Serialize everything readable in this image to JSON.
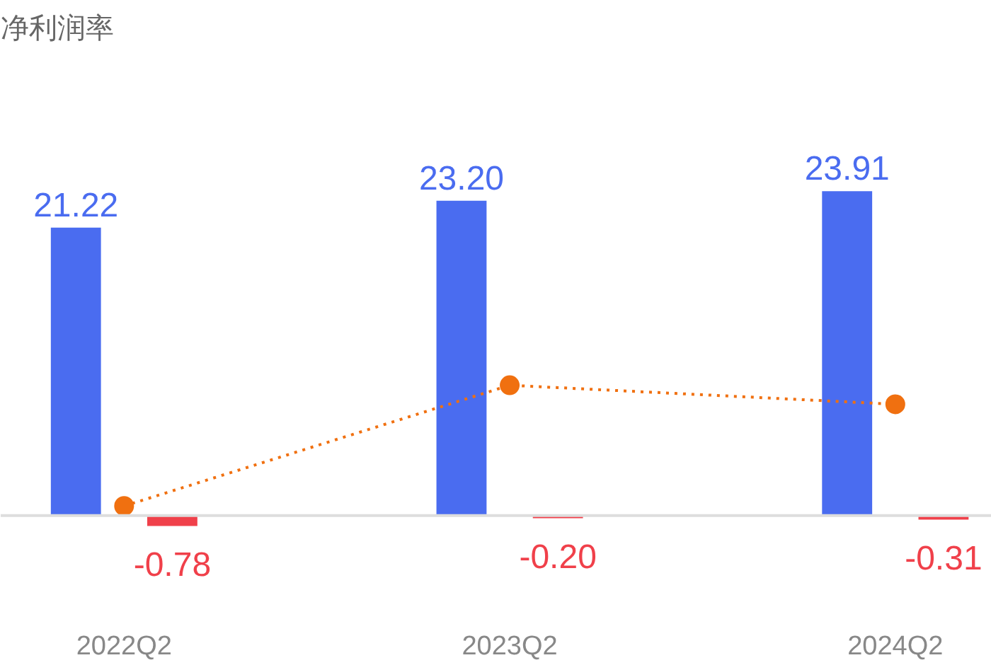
{
  "chart_data": {
    "type": "bar",
    "title": "净利润率",
    "categories": [
      "2022Q2",
      "2023Q2",
      "2024Q2"
    ],
    "series": [
      {
        "color": "#4a6cf0",
        "values": [
          21.22,
          23.2,
          23.91
        ],
        "value_labels": [
          "21.22",
          "23.20",
          "23.91"
        ]
      },
      {
        "color": "#f0404a",
        "values": [
          -0.78,
          -0.2,
          -0.31
        ],
        "value_labels": [
          "-0.78",
          "-0.20",
          "-0.31"
        ]
      },
      {
        "type": "line",
        "color": "#f07010",
        "values": [
          0.7,
          9.6,
          8.2
        ],
        "marker": "circle",
        "line_style": "dotted"
      }
    ],
    "ref_lines": [
      {
        "axis": "y",
        "value": 0,
        "color": "#dddddd"
      }
    ]
  }
}
